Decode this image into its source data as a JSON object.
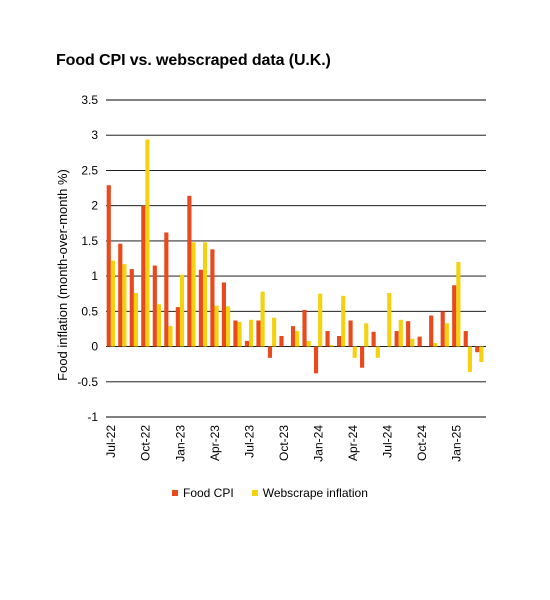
{
  "chart_data": {
    "type": "bar",
    "title": "Food CPI vs. webscraped data (U.K.)",
    "xlabel": "",
    "ylabel": "Food inflation (month-over-month %)",
    "ylim": [
      -1,
      3.5
    ],
    "yticks": [
      "3.5",
      "3",
      "2.5",
      "2",
      "1.5",
      "1",
      "0.5",
      "0",
      "-0.5",
      "-1"
    ],
    "grid": "horizontal",
    "legend_position": "bottom",
    "x_tick_labels": [
      "Jul-22",
      "Oct-22",
      "Jan-23",
      "Apr-23",
      "Jul-23",
      "Oct-23",
      "Jan-24",
      "Apr-24",
      "Jul-24",
      "Oct-24",
      "Jan-25"
    ],
    "categories": [
      "Jul-22",
      "Aug-22",
      "Sep-22",
      "Oct-22",
      "Nov-22",
      "Dec-22",
      "Jan-23",
      "Feb-23",
      "Mar-23",
      "Apr-23",
      "May-23",
      "Jun-23",
      "Jul-23",
      "Aug-23",
      "Sep-23",
      "Oct-23",
      "Nov-23",
      "Dec-23",
      "Jan-24",
      "Feb-24",
      "Mar-24",
      "Apr-24",
      "May-24",
      "Jun-24",
      "Jul-24",
      "Aug-24",
      "Sep-24",
      "Oct-24",
      "Nov-24",
      "Dec-24",
      "Jan-25",
      "Feb-25",
      "Mar-25"
    ],
    "series": [
      {
        "name": "Food CPI",
        "color": "#e8491d",
        "values": [
          2.29,
          1.46,
          1.1,
          2.0,
          1.15,
          1.62,
          0.56,
          2.14,
          1.09,
          1.38,
          0.91,
          0.37,
          0.08,
          0.37,
          -0.16,
          0.15,
          0.29,
          0.52,
          -0.38,
          0.22,
          0.15,
          0.37,
          -0.3,
          0.21,
          0.0,
          0.22,
          0.36,
          0.14,
          0.44,
          0.5,
          0.87,
          0.22,
          -0.08
        ]
      },
      {
        "name": "Webscrape inflation",
        "color": "#f5d20f",
        "values": [
          1.22,
          1.17,
          0.76,
          2.94,
          0.6,
          0.29,
          1.02,
          1.48,
          1.48,
          0.58,
          0.57,
          0.35,
          0.38,
          0.78,
          0.41,
          0.0,
          0.22,
          0.08,
          0.75,
          0.02,
          0.72,
          -0.16,
          0.33,
          -0.16,
          0.76,
          0.38,
          0.11,
          0.0,
          0.05,
          0.33,
          1.2,
          -0.36,
          -0.22
        ]
      }
    ]
  }
}
